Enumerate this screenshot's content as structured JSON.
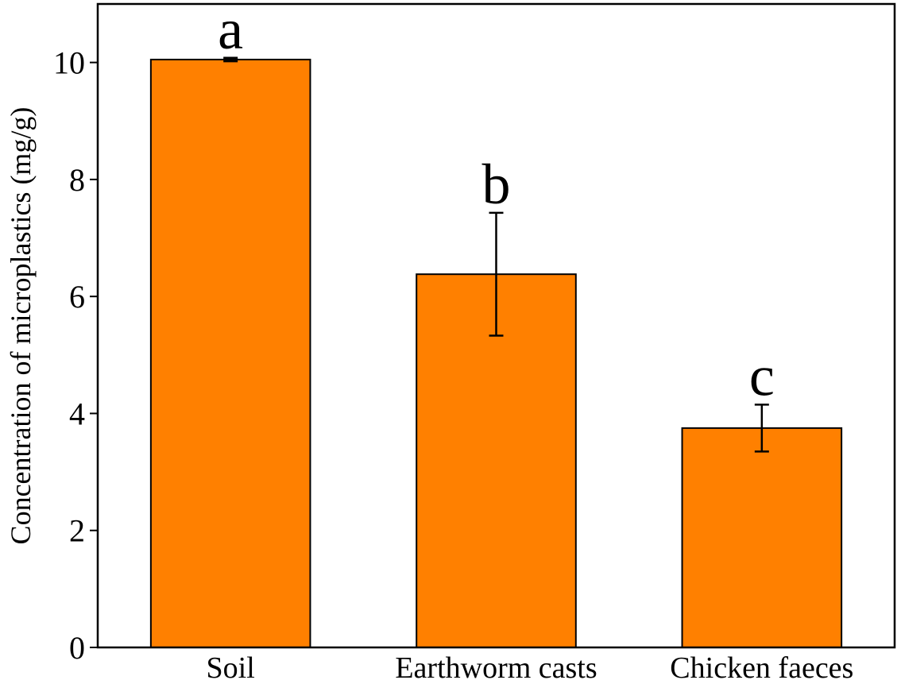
{
  "chart_data": {
    "type": "bar",
    "y_label": "Concentration of microplastics (mg/g)",
    "categories": [
      "Soil",
      "Earthworm casts",
      "Chicken faeces"
    ],
    "values": [
      10.05,
      6.38,
      3.75
    ],
    "errors": [
      0.03,
      1.05,
      0.4
    ],
    "group_labels": [
      "a",
      "b",
      "c"
    ],
    "color": "#ff8000",
    "ylim": [
      0,
      11
    ],
    "yticks": [
      0,
      2,
      4,
      6,
      8,
      10
    ]
  }
}
